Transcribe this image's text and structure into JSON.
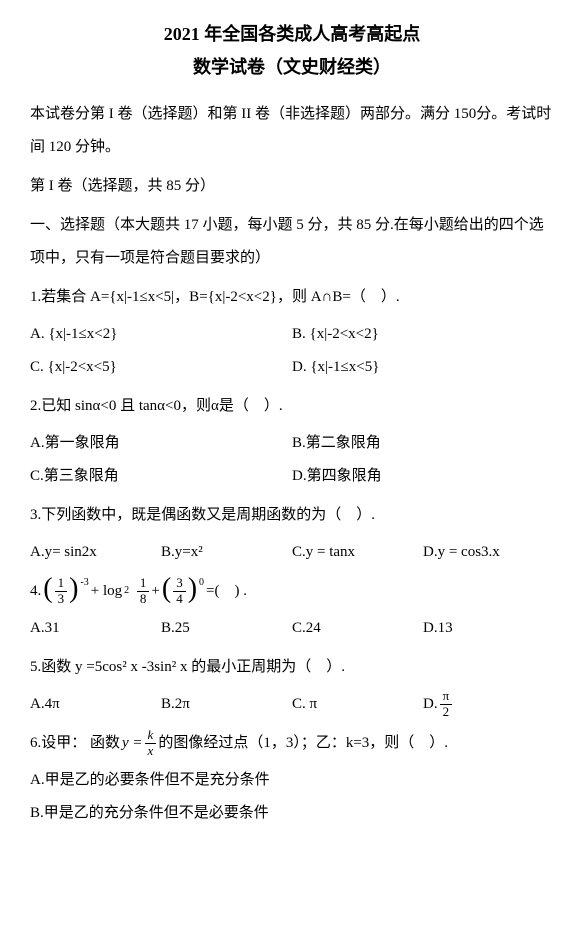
{
  "title": "2021 年全国各类成人高考高起点",
  "subtitle": "数学试卷（文史财经类）",
  "intro": "本试卷分第 I 卷（选择题）和第 II 卷（非选择题）两部分。满分 150分。考试时间 120 分钟。",
  "part1_header": "第 I 卷（选择题，共 85 分）",
  "section1_header": "一、选择题（本大题共 17 小题，每小题 5 分，共 85 分.在每小题给出的四个选项中，只有一项是符合题目要求的）",
  "q1": {
    "text": "1.若集合 A={x|-1≤x<5|，B={x|-2<x<2}，则 A∩B=（　）.",
    "opts": {
      "A": "A. {x|-1≤x<2}",
      "B": "B. {x|-2<x<2}",
      "C": "C. {x|-2<x<5}",
      "D": "D. {x|-1≤x<5}"
    }
  },
  "q2": {
    "text": "2.已知 sinα<0 且 tanα<0，则α是（　）.",
    "opts": {
      "A": "A.第一象限角",
      "B": "B.第二象限角",
      "C": "C.第三象限角",
      "D": "D.第四象限角"
    }
  },
  "q3": {
    "text": "3.下列函数中，既是偶函数又是周期函数的为（　）.",
    "opts": {
      "A": "A.y= sin2x",
      "B": "B.y=x²",
      "C": "C.y = tanx",
      "D": "D.y = cos3.x"
    }
  },
  "q4": {
    "prefix": "4.",
    "frac1_num": "1",
    "frac1_den": "3",
    "exp1": "-3",
    "plus1": " + log",
    "log_sub": "2",
    "frac2_num": "1",
    "frac2_den": "8",
    "plus2": " + ",
    "frac3_num": "3",
    "frac3_den": "4",
    "exp2": "0",
    "suffix": " =(　) .",
    "opts": {
      "A": "A.31",
      "B": "B.25",
      "C": "C.24",
      "D": "D.13"
    }
  },
  "q5": {
    "text": "5.函数 y =5cos² x -3sin² x 的最小正周期为（　）.",
    "opts": {
      "A": "A.4π",
      "B": "B.2π",
      "C": "C. π",
      "Dprefix": "D.",
      "Dnum": "π",
      "Dden": "2"
    }
  },
  "q6": {
    "prefix": "6.设甲： 函数 ",
    "yeq": "y = ",
    "frac_num": "k",
    "frac_den": "x",
    "suffix": " 的图像经过点（1，3）；乙：k=3，则（　）.",
    "opts": {
      "A": "A.甲是乙的必要条件但不是充分条件",
      "B": "B.甲是乙的充分条件但不是必要条件"
    }
  }
}
